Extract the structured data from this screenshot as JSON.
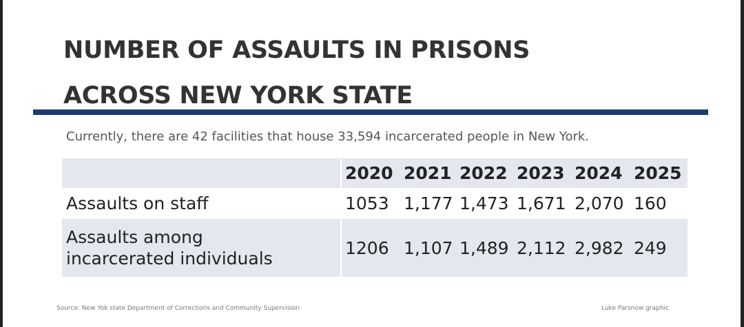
{
  "title_lines": [
    "NUMBER OF ASSAULTS IN PRISONS",
    "ACROSS NEW YORK STATE"
  ],
  "subtitle": "Currently, there are 42 facilities that house 33,594 incarcerated people in New York.",
  "table": {
    "years": [
      "2020",
      "2021",
      "2022",
      "2023",
      "2024",
      "2025"
    ],
    "rows": [
      {
        "label": "Assaults on staff",
        "values": [
          "1053",
          "1,177",
          "1,473",
          "1,671",
          "2,070",
          "160"
        ]
      },
      {
        "label_lines": [
          "Assaults among",
          "incarcerated individuals"
        ],
        "values": [
          "1206",
          "1,107",
          "1,489",
          "2,112",
          "2,982",
          "249"
        ]
      }
    ]
  },
  "source": "Source: New Yok state Department of Corrections and Community Supervision",
  "credit": "Luke Parsnow graphic",
  "colors": {
    "rule": "#1f3a6e",
    "row_shade": "#e4e7ed"
  }
}
